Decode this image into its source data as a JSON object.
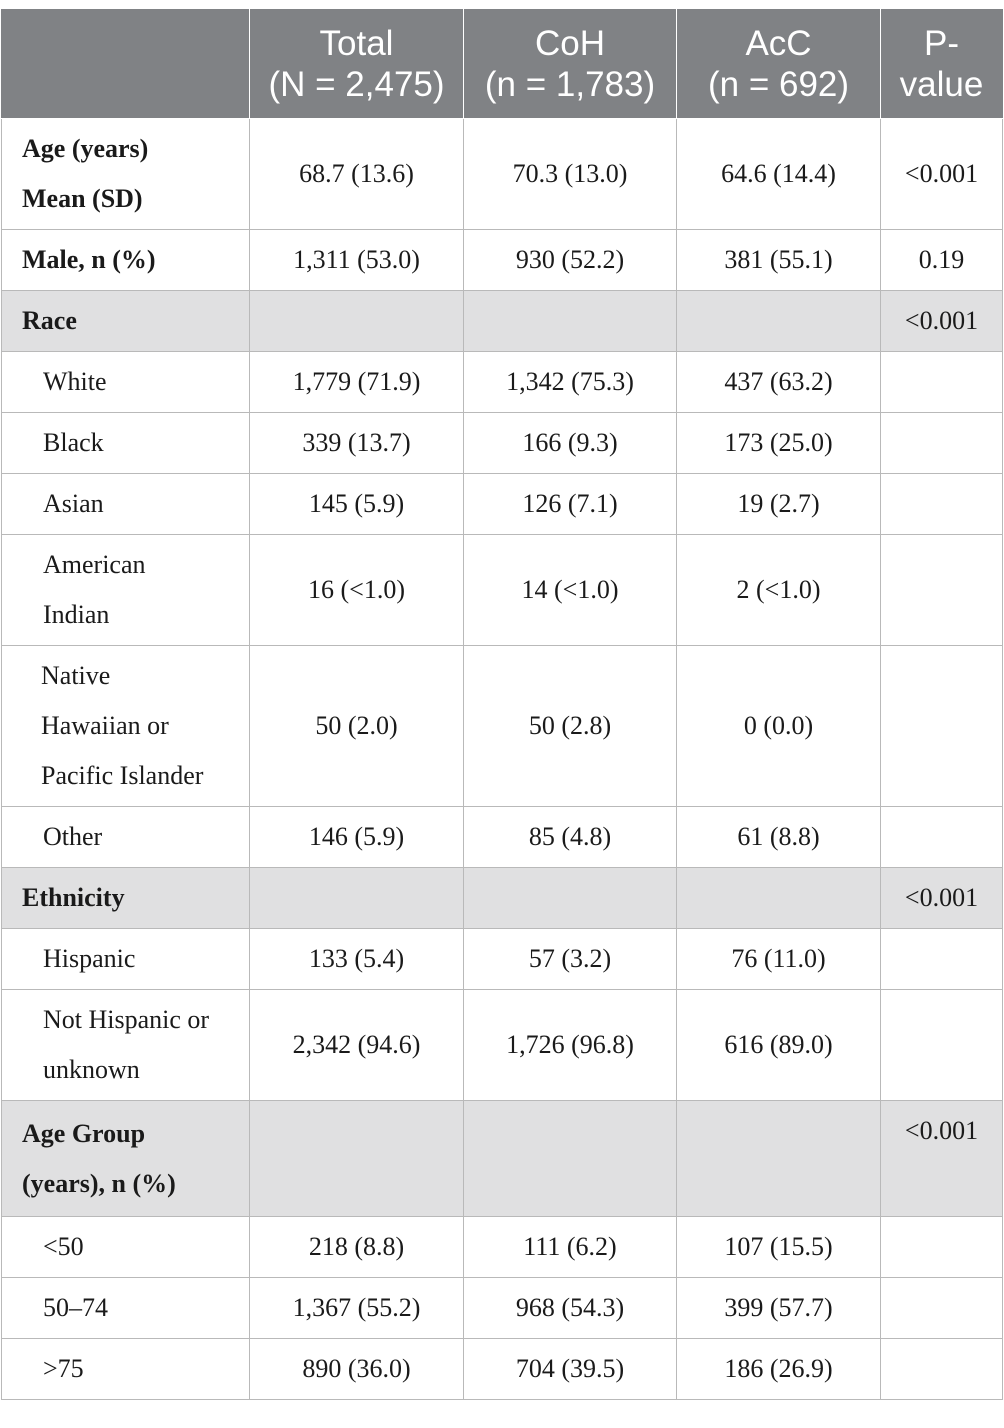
{
  "header": {
    "col0": "",
    "total_l1": "Total",
    "total_l2": "(N = 2,475)",
    "coh_l1": "CoH",
    "coh_l2": "(n = 1,783)",
    "acc_l1": "AcC",
    "acc_l2": "(n = 692)",
    "p_l1": "P-",
    "p_l2": "value"
  },
  "rows": [
    {
      "label_l1": "Age (years)",
      "label_l2": "Mean (SD)",
      "total": "68.7 (13.6)",
      "coh": "70.3 (13.0)",
      "acc": "64.6 (14.4)",
      "p": "<0.001"
    },
    {
      "label": "Male, n (%)",
      "total": "1,311 (53.0)",
      "coh": "930 (52.2)",
      "acc": "381 (55.1)",
      "p": "0.19"
    },
    {
      "label": "Race",
      "total": "",
      "coh": "",
      "acc": "",
      "p": "<0.001"
    },
    {
      "label": "White",
      "total": "1,779 (71.9)",
      "coh": "1,342 (75.3)",
      "acc": "437 (63.2)",
      "p": ""
    },
    {
      "label": "Black",
      "total": "339 (13.7)",
      "coh": "166 (9.3)",
      "acc": "173 (25.0)",
      "p": ""
    },
    {
      "label": "Asian",
      "total": "145 (5.9)",
      "coh": "126 (7.1)",
      "acc": "19 (2.7)",
      "p": ""
    },
    {
      "label_l1": "American",
      "label_l2": "Indian",
      "total": "16 (<1.0)",
      "coh": "14 (<1.0)",
      "acc": "2 (<1.0)",
      "p": ""
    },
    {
      "label_l1": "Native",
      "label_l2": "Hawaiian or",
      "label_l3": "Pacific Islander",
      "total": "50 (2.0)",
      "coh": "50 (2.8)",
      "acc": "0 (0.0)",
      "p": ""
    },
    {
      "label": "Other",
      "total": "146 (5.9)",
      "coh": "85 (4.8)",
      "acc": "61 (8.8)",
      "p": ""
    },
    {
      "label": "Ethnicity",
      "total": "",
      "coh": "",
      "acc": "",
      "p": "<0.001"
    },
    {
      "label": "Hispanic",
      "total": "133 (5.4)",
      "coh": "57 (3.2)",
      "acc": "76 (11.0)",
      "p": ""
    },
    {
      "label_l1": "Not Hispanic or",
      "label_l2": "unknown",
      "total": "2,342 (94.6)",
      "coh": "1,726 (96.8)",
      "acc": "616 (89.0)",
      "p": ""
    },
    {
      "label_l1": "Age Group",
      "label_l2": "(years), n (%)",
      "total": "",
      "coh": "",
      "acc": "",
      "p": "<0.001"
    },
    {
      "label": "<50",
      "total": "218 (8.8)",
      "coh": "111 (6.2)",
      "acc": "107 (15.5)",
      "p": ""
    },
    {
      "label": "50–74",
      "total": "1,367 (55.2)",
      "coh": "968 (54.3)",
      "acc": "399 (57.7)",
      "p": ""
    },
    {
      "label": ">75",
      "total": "890 (36.0)",
      "coh": "704 (39.5)",
      "acc": "186 (26.9)",
      "p": ""
    }
  ]
}
